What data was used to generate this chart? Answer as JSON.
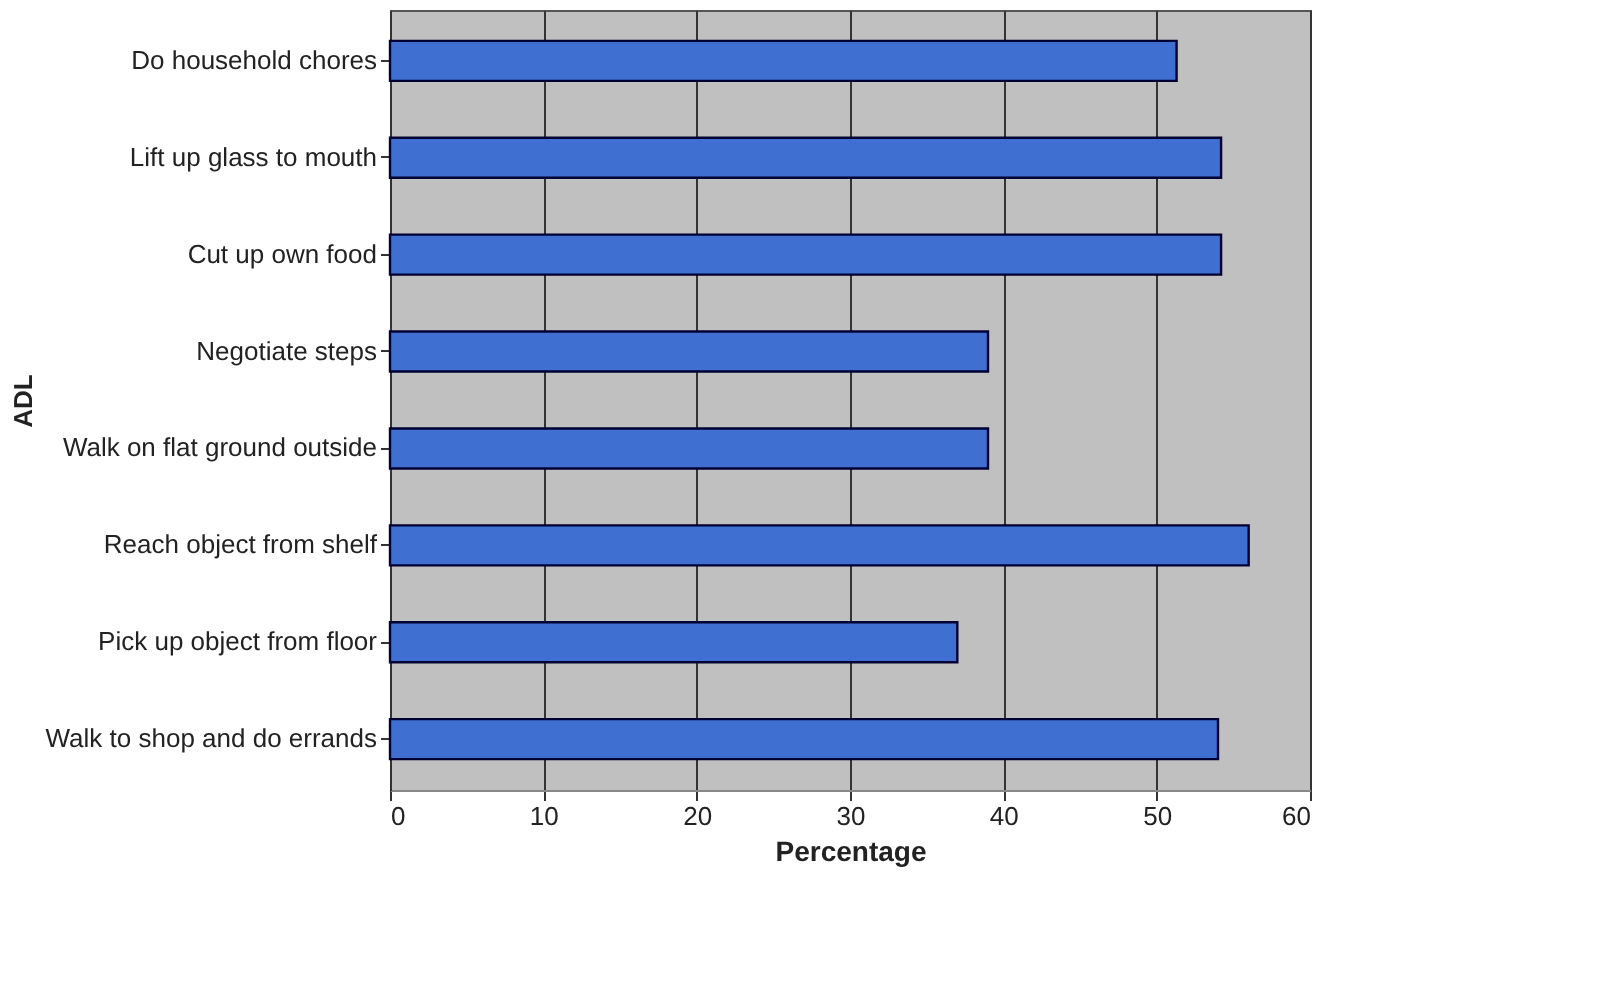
{
  "chart_data": {
    "type": "bar",
    "orientation": "horizontal",
    "xlabel": "Percentage",
    "ylabel": "ADL",
    "categories": [
      "Do household chores",
      "Lift up glass to mouth",
      "Cut up own food",
      "Negotiate steps",
      "Walk on flat ground outside",
      "Reach object from shelf",
      "Pick up object from floor",
      "Walk to shop and do errands"
    ],
    "values": [
      51.3,
      54.2,
      54.2,
      39,
      39,
      56,
      37,
      54
    ],
    "color": "#3f6fd0",
    "xlim": [
      0,
      60
    ],
    "xticks": [
      0,
      10,
      20,
      30,
      40,
      50,
      60
    ],
    "grid": "x"
  }
}
